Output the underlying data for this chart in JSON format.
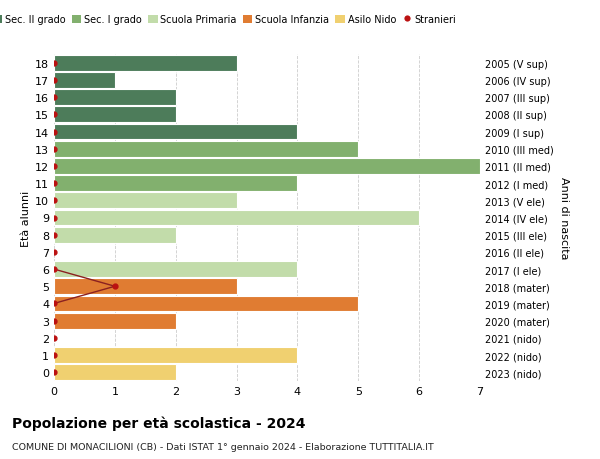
{
  "ages": [
    18,
    17,
    16,
    15,
    14,
    13,
    12,
    11,
    10,
    9,
    8,
    7,
    6,
    5,
    4,
    3,
    2,
    1,
    0
  ],
  "right_labels": [
    "2005 (V sup)",
    "2006 (IV sup)",
    "2007 (III sup)",
    "2008 (II sup)",
    "2009 (I sup)",
    "2010 (III med)",
    "2011 (II med)",
    "2012 (I med)",
    "2013 (V ele)",
    "2014 (IV ele)",
    "2015 (III ele)",
    "2016 (II ele)",
    "2017 (I ele)",
    "2018 (mater)",
    "2019 (mater)",
    "2020 (mater)",
    "2021 (nido)",
    "2022 (nido)",
    "2023 (nido)"
  ],
  "bar_values": [
    3,
    1,
    2,
    2,
    4,
    5,
    7,
    4,
    3,
    6,
    2,
    0,
    4,
    3,
    5,
    2,
    0,
    4,
    2
  ],
  "bar_colors": [
    "#4d7c5a",
    "#4d7c5a",
    "#4d7c5a",
    "#4d7c5a",
    "#4d7c5a",
    "#82b06e",
    "#82b06e",
    "#82b06e",
    "#c2dcaa",
    "#c2dcaa",
    "#c2dcaa",
    "#c2dcaa",
    "#c2dcaa",
    "#e07c32",
    "#e07c32",
    "#e07c32",
    "#f0d070",
    "#f0d070",
    "#f0d070"
  ],
  "legend_labels": [
    "Sec. II grado",
    "Sec. I grado",
    "Scuola Primaria",
    "Scuola Infanzia",
    "Asilo Nido",
    "Stranieri"
  ],
  "legend_colors": [
    "#4d7c5a",
    "#82b06e",
    "#c2dcaa",
    "#e07c32",
    "#f0d070",
    "#bb1111"
  ],
  "title": "Popolazione per età scolastica - 2024",
  "subtitle": "COMUNE DI MONACILIONI (CB) - Dati ISTAT 1° gennaio 2024 - Elaborazione TUTTITALIA.IT",
  "ylabel_left": "Età alunni",
  "ylabel_right": "Anni di nascita",
  "xlim": [
    0,
    7
  ],
  "ylim": [
    -0.5,
    18.5
  ],
  "background_color": "#ffffff",
  "grid_color": "#cccccc",
  "stranieri_line_color": "#8b2020",
  "stranieri_dot_color": "#bb1111",
  "stranieri_x": [
    0,
    0,
    0,
    0,
    0,
    0,
    0,
    0,
    0,
    0,
    0,
    0,
    0,
    1,
    0,
    0,
    0,
    0,
    0
  ],
  "stranieri_line_ages": [
    6,
    5,
    4
  ],
  "stranieri_line_x": [
    0,
    1,
    0
  ]
}
